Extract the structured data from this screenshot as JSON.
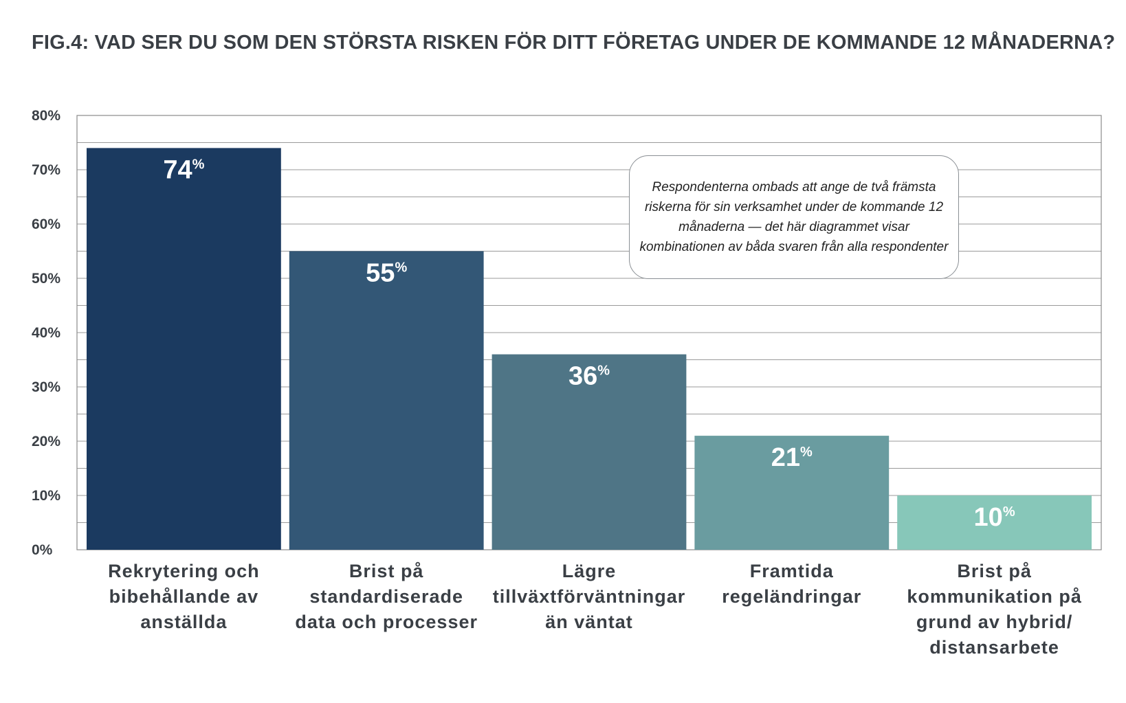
{
  "title": "FIG.4: VAD SER DU SOM DEN STÖRSTA RISKEN FÖR DITT FÖRETAG UNDER DE KOMMANDE 12 MÅNADERNA?",
  "note": "Respondenterna ombads att ange de två främsta riskerna för sin verksamhet under de kommande 12 månaderna — det här diagrammet visar kombinationen av båda svaren från alla respondenter",
  "chart_data": {
    "type": "bar",
    "title": "FIG.4: VAD SER DU SOM DEN STÖRSTA RISKEN FÖR DITT FÖRETAG UNDER DE KOMMANDE 12 MÅNADERNA?",
    "categories": [
      "Rekrytering och bibehållande av anställda",
      "Brist på standardiserade data och processer",
      "Lägre tillväxtförväntningar än väntat",
      "Framtida regeländringar",
      "Brist på kommunikation på grund av hybrid/ distansarbete"
    ],
    "category_lines": [
      [
        "Rekrytering och",
        "bibehållande av",
        "anställda"
      ],
      [
        "Brist på",
        "standardiserade",
        "data och processer"
      ],
      [
        "Lägre",
        "tillväxtförväntningar",
        "än väntat"
      ],
      [
        "Framtida",
        "regeländringar"
      ],
      [
        "Brist på",
        "kommunikation på",
        "grund av hybrid/",
        "distansarbete"
      ]
    ],
    "values": [
      74,
      55,
      36,
      21,
      10
    ],
    "data_labels": [
      "74",
      "55",
      "36",
      "21",
      "10"
    ],
    "data_label_unit": "%",
    "ylim": [
      0,
      80
    ],
    "yticks": [
      "0%",
      "10%",
      "20%",
      "30%",
      "40%",
      "50%",
      "60%",
      "70%",
      "80%"
    ],
    "grid": true,
    "colors": [
      "#1b3a60",
      "#335776",
      "#4f7586",
      "#6a9ca0",
      "#87c7b9"
    ],
    "xlabel": "",
    "ylabel": ""
  }
}
